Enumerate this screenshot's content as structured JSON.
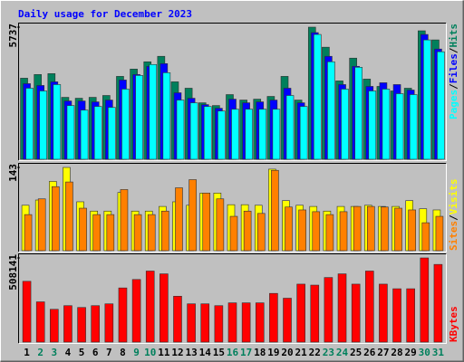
{
  "chart_data": [
    {
      "type": "bar",
      "title": "Daily usage for December 2023",
      "ylim": [
        0,
        5737
      ],
      "yticks": [
        5737
      ],
      "legend_separator": "/",
      "series": [
        {
          "name": "Hits",
          "color": "#00805c",
          "values": [
            3521,
            3680,
            3719,
            2690,
            2651,
            2690,
            2770,
            3600,
            3917,
            4234,
            4471,
            3363,
            3086,
            2453,
            2334,
            2809,
            2572,
            2611,
            2730,
            3600,
            2572,
            5737,
            4866,
            3403,
            4392,
            3482,
            3165,
            2967,
            3086,
            5579,
            5183
          ]
        },
        {
          "name": "Files",
          "color": "#0000ff",
          "values": [
            3284,
            3205,
            3363,
            2532,
            2532,
            2493,
            2572,
            3442,
            3680,
            4036,
            4154,
            2888,
            2651,
            2374,
            2216,
            2611,
            2453,
            2493,
            2572,
            3086,
            2453,
            5500,
            4471,
            3244,
            4036,
            3165,
            3323,
            3244,
            3007,
            5420,
            4787
          ]
        },
        {
          "name": "Pages",
          "color": "#00ffff",
          "values": [
            3086,
            2967,
            3244,
            2334,
            2137,
            2295,
            2255,
            3047,
            3640,
            4115,
            3759,
            2572,
            2453,
            2295,
            2097,
            2176,
            2176,
            2176,
            2176,
            2770,
            2295,
            5420,
            4234,
            3047,
            3996,
            2967,
            3047,
            2849,
            2809,
            5183,
            4669
          ]
        }
      ]
    },
    {
      "type": "bar",
      "ylim": [
        0,
        143
      ],
      "yticks": [
        143
      ],
      "series": [
        {
          "name": "Visits",
          "color": "#ffff00",
          "values": [
            78,
            87,
            119,
            143,
            84,
            68,
            68,
            100,
            68,
            68,
            76,
            84,
            78,
            99,
            99,
            79,
            79,
            78,
            140,
            86,
            78,
            76,
            68,
            76,
            76,
            78,
            76,
            76,
            86,
            72,
            70
          ]
        },
        {
          "name": "Sites",
          "color": "#ff8000",
          "values": [
            62,
            89,
            110,
            118,
            73,
            62,
            62,
            105,
            62,
            62,
            68,
            108,
            122,
            99,
            89,
            59,
            68,
            64,
            138,
            75,
            70,
            67,
            62,
            67,
            76,
            76,
            75,
            73,
            70,
            48,
            59
          ]
        }
      ]
    },
    {
      "type": "bar",
      "ylim": [
        0,
        508141
      ],
      "yticks": [
        508141
      ],
      "series": [
        {
          "name": "KBytes",
          "color": "#ff0000",
          "values": [
            367000,
            243000,
            198000,
            220000,
            209000,
            220000,
            231000,
            327000,
            378000,
            429000,
            412000,
            277000,
            231000,
            231000,
            220000,
            237000,
            237000,
            237000,
            294000,
            265000,
            350000,
            344000,
            390000,
            412000,
            350000,
            429000,
            350000,
            322000,
            322000,
            508141,
            469000
          ]
        }
      ],
      "categories": [
        "1",
        "2",
        "3",
        "4",
        "5",
        "6",
        "7",
        "8",
        "9",
        "10",
        "11",
        "12",
        "13",
        "14",
        "15",
        "16",
        "17",
        "18",
        "19",
        "20",
        "21",
        "22",
        "23",
        "24",
        "25",
        "26",
        "27",
        "28",
        "29",
        "30",
        "31"
      ],
      "category_colors": [
        "#000000",
        "#00805c",
        "#00805c",
        "#000000",
        "#000000",
        "#000000",
        "#000000",
        "#000000",
        "#00805c",
        "#00805c",
        "#000000",
        "#000000",
        "#000000",
        "#000000",
        "#000000",
        "#00805c",
        "#00805c",
        "#000000",
        "#000000",
        "#000000",
        "#000000",
        "#000000",
        "#00805c",
        "#00805c",
        "#000000",
        "#000000",
        "#000000",
        "#000000",
        "#000000",
        "#00805c",
        "#00805c"
      ]
    }
  ]
}
